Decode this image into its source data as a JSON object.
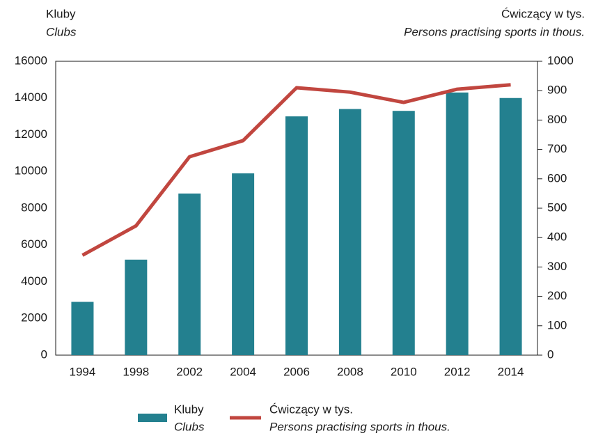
{
  "chart_data": {
    "type": "bar_line",
    "y_label": "Kluby",
    "y_label_en": "Clubs",
    "y2_label": "Ćwiczący w tys.",
    "y2_label_en": "Persons practising sports in thous.",
    "categories": [
      "1994",
      "1998",
      "2002",
      "2004",
      "2006",
      "2008",
      "2010",
      "2012",
      "2014"
    ],
    "series": [
      {
        "name": "Kluby",
        "name_en": "Clubs",
        "type": "bar",
        "color": "#23808f",
        "values": [
          2900,
          5200,
          8800,
          9900,
          13000,
          13400,
          13300,
          14300,
          14000
        ]
      },
      {
        "name": "Ćwiczący w tys.",
        "name_en": "Persons practising sports in thous.",
        "type": "line",
        "axis": "y2",
        "color": "#c1463f",
        "values": [
          340,
          440,
          675,
          730,
          910,
          895,
          860,
          905,
          920
        ]
      }
    ],
    "ylim": [
      0,
      16000
    ],
    "yticks": [
      0,
      2000,
      4000,
      6000,
      8000,
      10000,
      12000,
      14000,
      16000
    ],
    "y2lim": [
      0,
      1000
    ],
    "y2ticks": [
      0,
      100,
      200,
      300,
      400,
      500,
      600,
      700,
      800,
      900,
      1000
    ]
  }
}
